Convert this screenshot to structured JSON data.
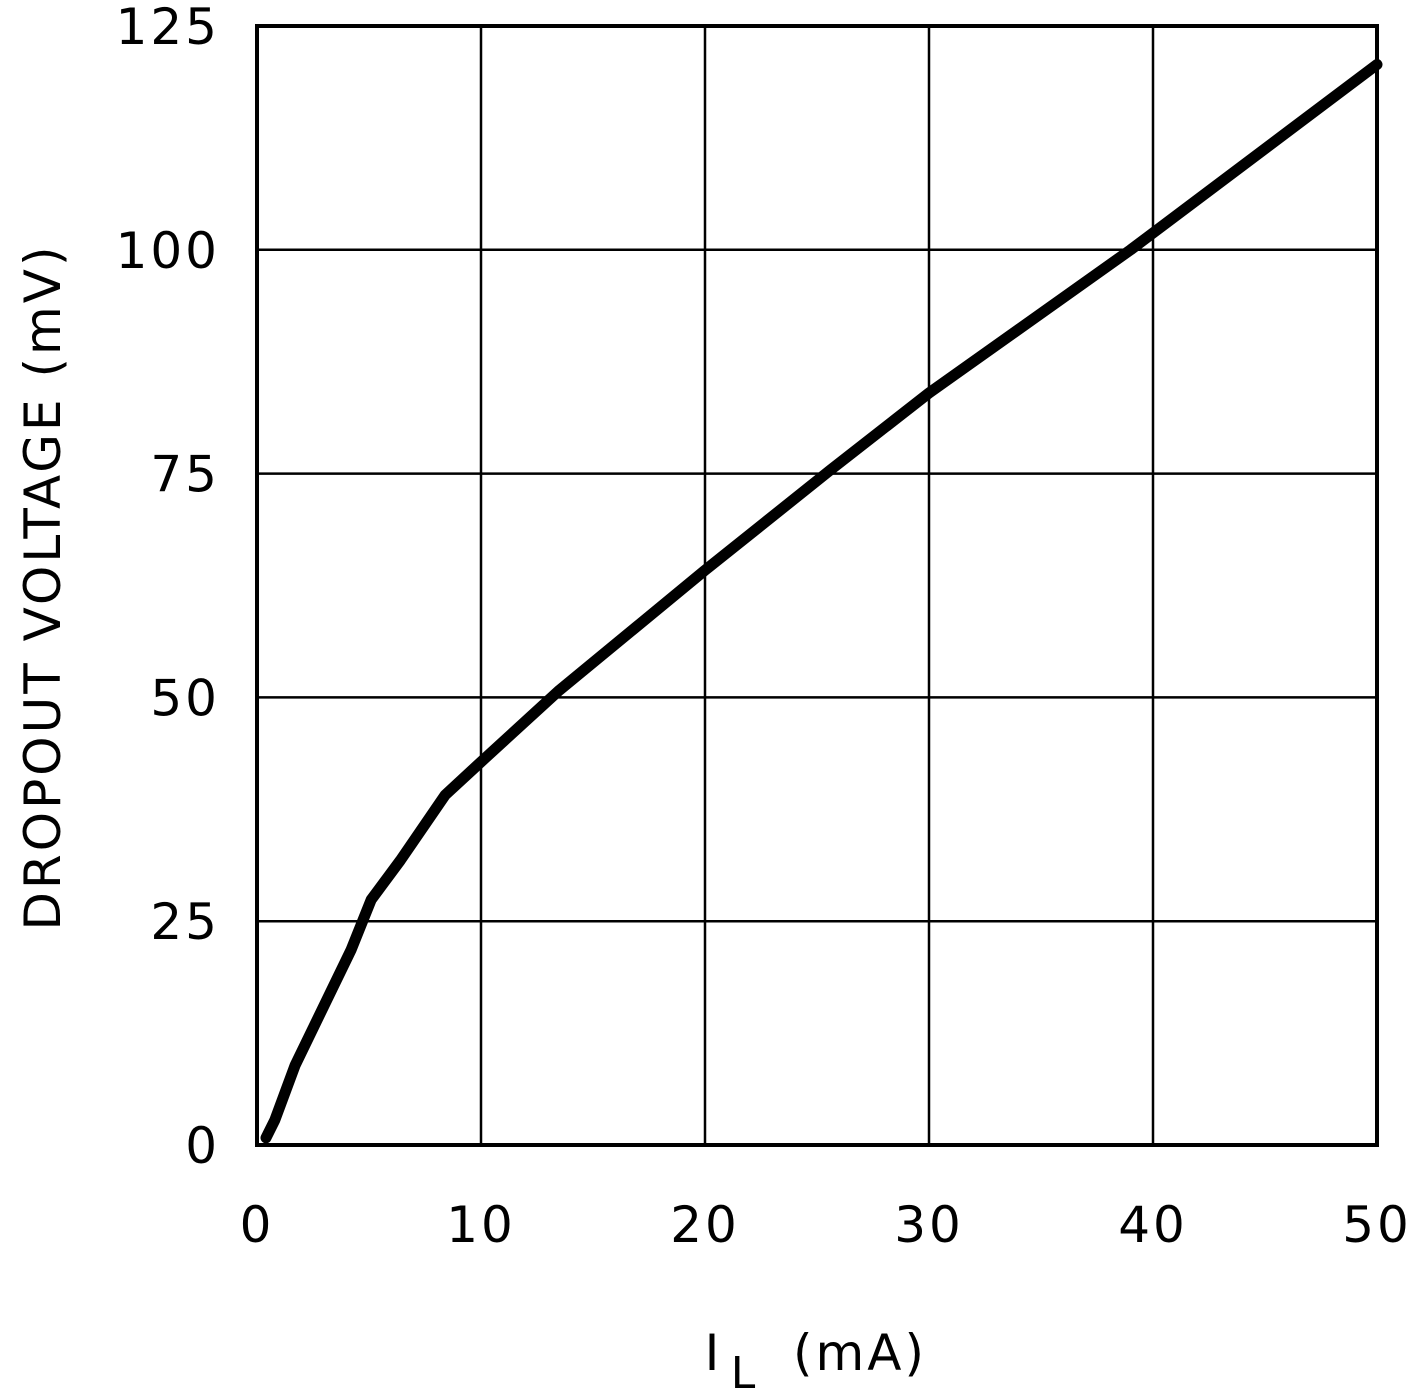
{
  "chart_data": {
    "type": "line",
    "title": "",
    "xlabel": "I",
    "xlabel_sub": "L",
    "xlabel_unit": "(mA)",
    "ylabel": "DROPOUT VOLTAGE (mV)",
    "xlim": [
      0,
      50
    ],
    "ylim": [
      0,
      125
    ],
    "xticks": [
      0,
      10,
      20,
      30,
      40,
      50
    ],
    "yticks": [
      0,
      25,
      50,
      75,
      100,
      125
    ],
    "xtick_labels": [
      "0",
      "10",
      "20",
      "30",
      "40",
      "50"
    ],
    "ytick_labels": [
      "0",
      "25",
      "50",
      "75",
      "100",
      "125"
    ],
    "grid": true,
    "series": [
      {
        "name": "Dropout Voltage",
        "color": "#000000",
        "x": [
          0.4,
          0.8,
          1.7,
          4.2,
          5.1,
          6.4,
          8.4,
          10,
          13.5,
          20,
          25.6,
          30,
          39,
          50
        ],
        "y": [
          0.8,
          2.8,
          8.9,
          21.8,
          27.4,
          31.8,
          39.1,
          42.8,
          50.8,
          64.2,
          75.4,
          84,
          100,
          120.7
        ]
      }
    ]
  }
}
